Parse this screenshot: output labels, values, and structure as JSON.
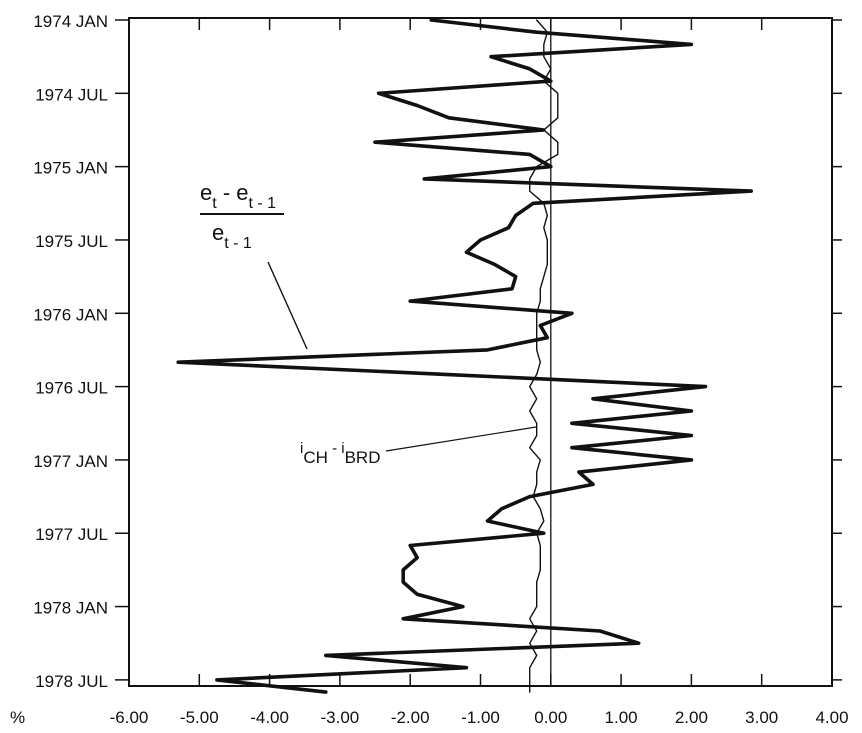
{
  "chart_data": {
    "type": "line",
    "orientation": "vertical-time-axis",
    "title": "",
    "xlabel": "%",
    "ylabel": "",
    "xlim": [
      -6.0,
      4.0
    ],
    "x_ticks": [
      -6.0,
      -5.0,
      -4.0,
      -3.0,
      -2.0,
      -1.0,
      0.0,
      1.0,
      2.0,
      3.0,
      4.0
    ],
    "x_tick_labels": [
      "-6.00",
      "-5.00",
      "-4.00",
      "-3.00",
      "-2.00",
      "-1.00",
      "0.00",
      "1.00",
      "2.00",
      "3.00",
      "4.00"
    ],
    "y_ticks": [
      "1974-01",
      "1974-07",
      "1975-01",
      "1975-07",
      "1976-01",
      "1976-07",
      "1977-01",
      "1977-07",
      "1978-01",
      "1978-07"
    ],
    "y_tick_labels": [
      "1974  JAN",
      "1974  JUL",
      "1975  JAN",
      "1975  JUL",
      "1976  JAN",
      "1976  JUL",
      "1977  JAN",
      "1977  JUL",
      "1978  JAN",
      "1978  JUL"
    ],
    "y_top": "1974-01",
    "y_bottom": "1978-07",
    "zero_line": true,
    "grid": false,
    "series": [
      {
        "label": [
          "e",
          "t",
          " - e",
          "t - 1",
          "e",
          "t - 1"
        ],
        "color": "#111111",
        "style": "thick",
        "points": [
          [
            "1974-01",
            -1.7
          ],
          [
            "1974-02",
            -0.2
          ],
          [
            "1974-03",
            2.0
          ],
          [
            "1974-04",
            -0.85
          ],
          [
            "1974-05",
            -0.3
          ],
          [
            "1974-06",
            0.0
          ],
          [
            "1974-07",
            -2.45
          ],
          [
            "1974-08",
            -1.9
          ],
          [
            "1974-09",
            -1.45
          ],
          [
            "1974-10",
            -0.1
          ],
          [
            "1974-11",
            -2.5
          ],
          [
            "1974-12",
            -0.3
          ],
          [
            "1975-01",
            0.0
          ],
          [
            "1975-02",
            -1.8
          ],
          [
            "1975-03",
            2.85
          ],
          [
            "1975-04",
            -0.25
          ],
          [
            "1975-05",
            -0.5
          ],
          [
            "1975-06",
            -0.6
          ],
          [
            "1975-07",
            -1.0
          ],
          [
            "1975-08",
            -1.2
          ],
          [
            "1975-09",
            -0.8
          ],
          [
            "1975-10",
            -0.5
          ],
          [
            "1975-11",
            -0.55
          ],
          [
            "1975-12",
            -2.0
          ],
          [
            "1976-01",
            0.3
          ],
          [
            "1976-02",
            -0.15
          ],
          [
            "1976-03",
            -0.05
          ],
          [
            "1976-04",
            -0.9
          ],
          [
            "1976-05",
            -5.3
          ],
          [
            "1976-06",
            -1.5
          ],
          [
            "1976-07",
            2.2
          ],
          [
            "1976-08",
            0.6
          ],
          [
            "1976-09",
            2.0
          ],
          [
            "1976-10",
            0.3
          ],
          [
            "1976-11",
            2.0
          ],
          [
            "1976-12",
            0.3
          ],
          [
            "1977-01",
            2.0
          ],
          [
            "1977-02",
            0.4
          ],
          [
            "1977-03",
            0.6
          ],
          [
            "1977-04",
            -0.3
          ],
          [
            "1977-05",
            -0.7
          ],
          [
            "1977-06",
            -0.9
          ],
          [
            "1977-07",
            -0.1
          ],
          [
            "1977-08",
            -2.0
          ],
          [
            "1977-09",
            -1.9
          ],
          [
            "1977-10",
            -2.1
          ],
          [
            "1977-11",
            -2.1
          ],
          [
            "1977-12",
            -1.9
          ],
          [
            "1978-01",
            -1.25
          ],
          [
            "1978-02",
            -2.1
          ],
          [
            "1978-03",
            0.7
          ],
          [
            "1978-04",
            1.25
          ],
          [
            "1978-05",
            -3.2
          ],
          [
            "1978-06",
            -1.2
          ],
          [
            "1978-07",
            -4.75
          ],
          [
            "1978-08",
            -3.2
          ]
        ]
      },
      {
        "label": [
          "i",
          "CH",
          " - i",
          "BRD"
        ],
        "color": "#111111",
        "style": "thin",
        "points": [
          [
            "1974-01",
            -0.2
          ],
          [
            "1974-02",
            -0.05
          ],
          [
            "1974-03",
            -0.1
          ],
          [
            "1974-04",
            -0.1
          ],
          [
            "1974-05",
            0.0
          ],
          [
            "1974-06",
            -0.1
          ],
          [
            "1974-07",
            0.1
          ],
          [
            "1974-08",
            0.1
          ],
          [
            "1974-09",
            0.1
          ],
          [
            "1974-10",
            -0.1
          ],
          [
            "1974-11",
            0.1
          ],
          [
            "1974-12",
            0.1
          ],
          [
            "1975-01",
            -0.2
          ],
          [
            "1975-02",
            -0.3
          ],
          [
            "1975-03",
            -0.3
          ],
          [
            "1975-04",
            -0.1
          ],
          [
            "1975-05",
            -0.05
          ],
          [
            "1975-06",
            -0.1
          ],
          [
            "1975-07",
            -0.05
          ],
          [
            "1975-08",
            -0.05
          ],
          [
            "1975-09",
            -0.05
          ],
          [
            "1975-10",
            -0.1
          ],
          [
            "1975-11",
            -0.15
          ],
          [
            "1975-12",
            -0.15
          ],
          [
            "1976-01",
            -0.2
          ],
          [
            "1976-02",
            -0.2
          ],
          [
            "1976-03",
            -0.2
          ],
          [
            "1976-04",
            -0.2
          ],
          [
            "1976-05",
            -0.15
          ],
          [
            "1976-06",
            -0.2
          ],
          [
            "1976-07",
            -0.3
          ],
          [
            "1976-08",
            -0.2
          ],
          [
            "1976-09",
            -0.3
          ],
          [
            "1976-10",
            -0.2
          ],
          [
            "1976-11",
            -0.2
          ],
          [
            "1976-12",
            -0.3
          ],
          [
            "1977-01",
            -0.15
          ],
          [
            "1977-02",
            -0.2
          ],
          [
            "1977-03",
            -0.2
          ],
          [
            "1977-04",
            -0.25
          ],
          [
            "1977-05",
            -0.15
          ],
          [
            "1977-06",
            -0.1
          ],
          [
            "1977-07",
            -0.2
          ],
          [
            "1977-08",
            -0.15
          ],
          [
            "1977-09",
            -0.15
          ],
          [
            "1977-10",
            -0.15
          ],
          [
            "1977-11",
            -0.2
          ],
          [
            "1977-12",
            -0.2
          ],
          [
            "1978-01",
            -0.2
          ],
          [
            "1978-02",
            -0.3
          ],
          [
            "1978-03",
            -0.2
          ],
          [
            "1978-04",
            -0.3
          ],
          [
            "1978-05",
            -0.2
          ],
          [
            "1978-06",
            -0.3
          ],
          [
            "1978-07",
            -0.3
          ],
          [
            "1978-08",
            -0.3
          ]
        ]
      }
    ]
  }
}
